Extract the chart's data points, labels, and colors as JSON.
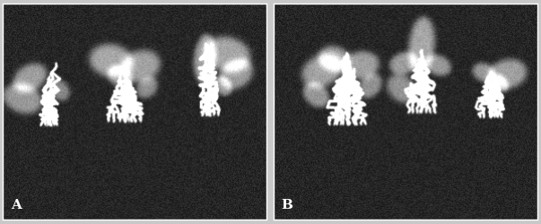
{
  "fig_width": 6.03,
  "fig_height": 2.51,
  "dpi": 100,
  "panel_A_label": "A",
  "panel_B_label": "B",
  "label_color": "#ffffff",
  "label_fontsize": 11,
  "label_fontweight": "bold",
  "outer_bg": "#c8c8c8",
  "panel_border_color": "#ffffff",
  "panel_A_bg_gray": 40,
  "panel_B_bg_gray": 38,
  "noise_grain": 18
}
